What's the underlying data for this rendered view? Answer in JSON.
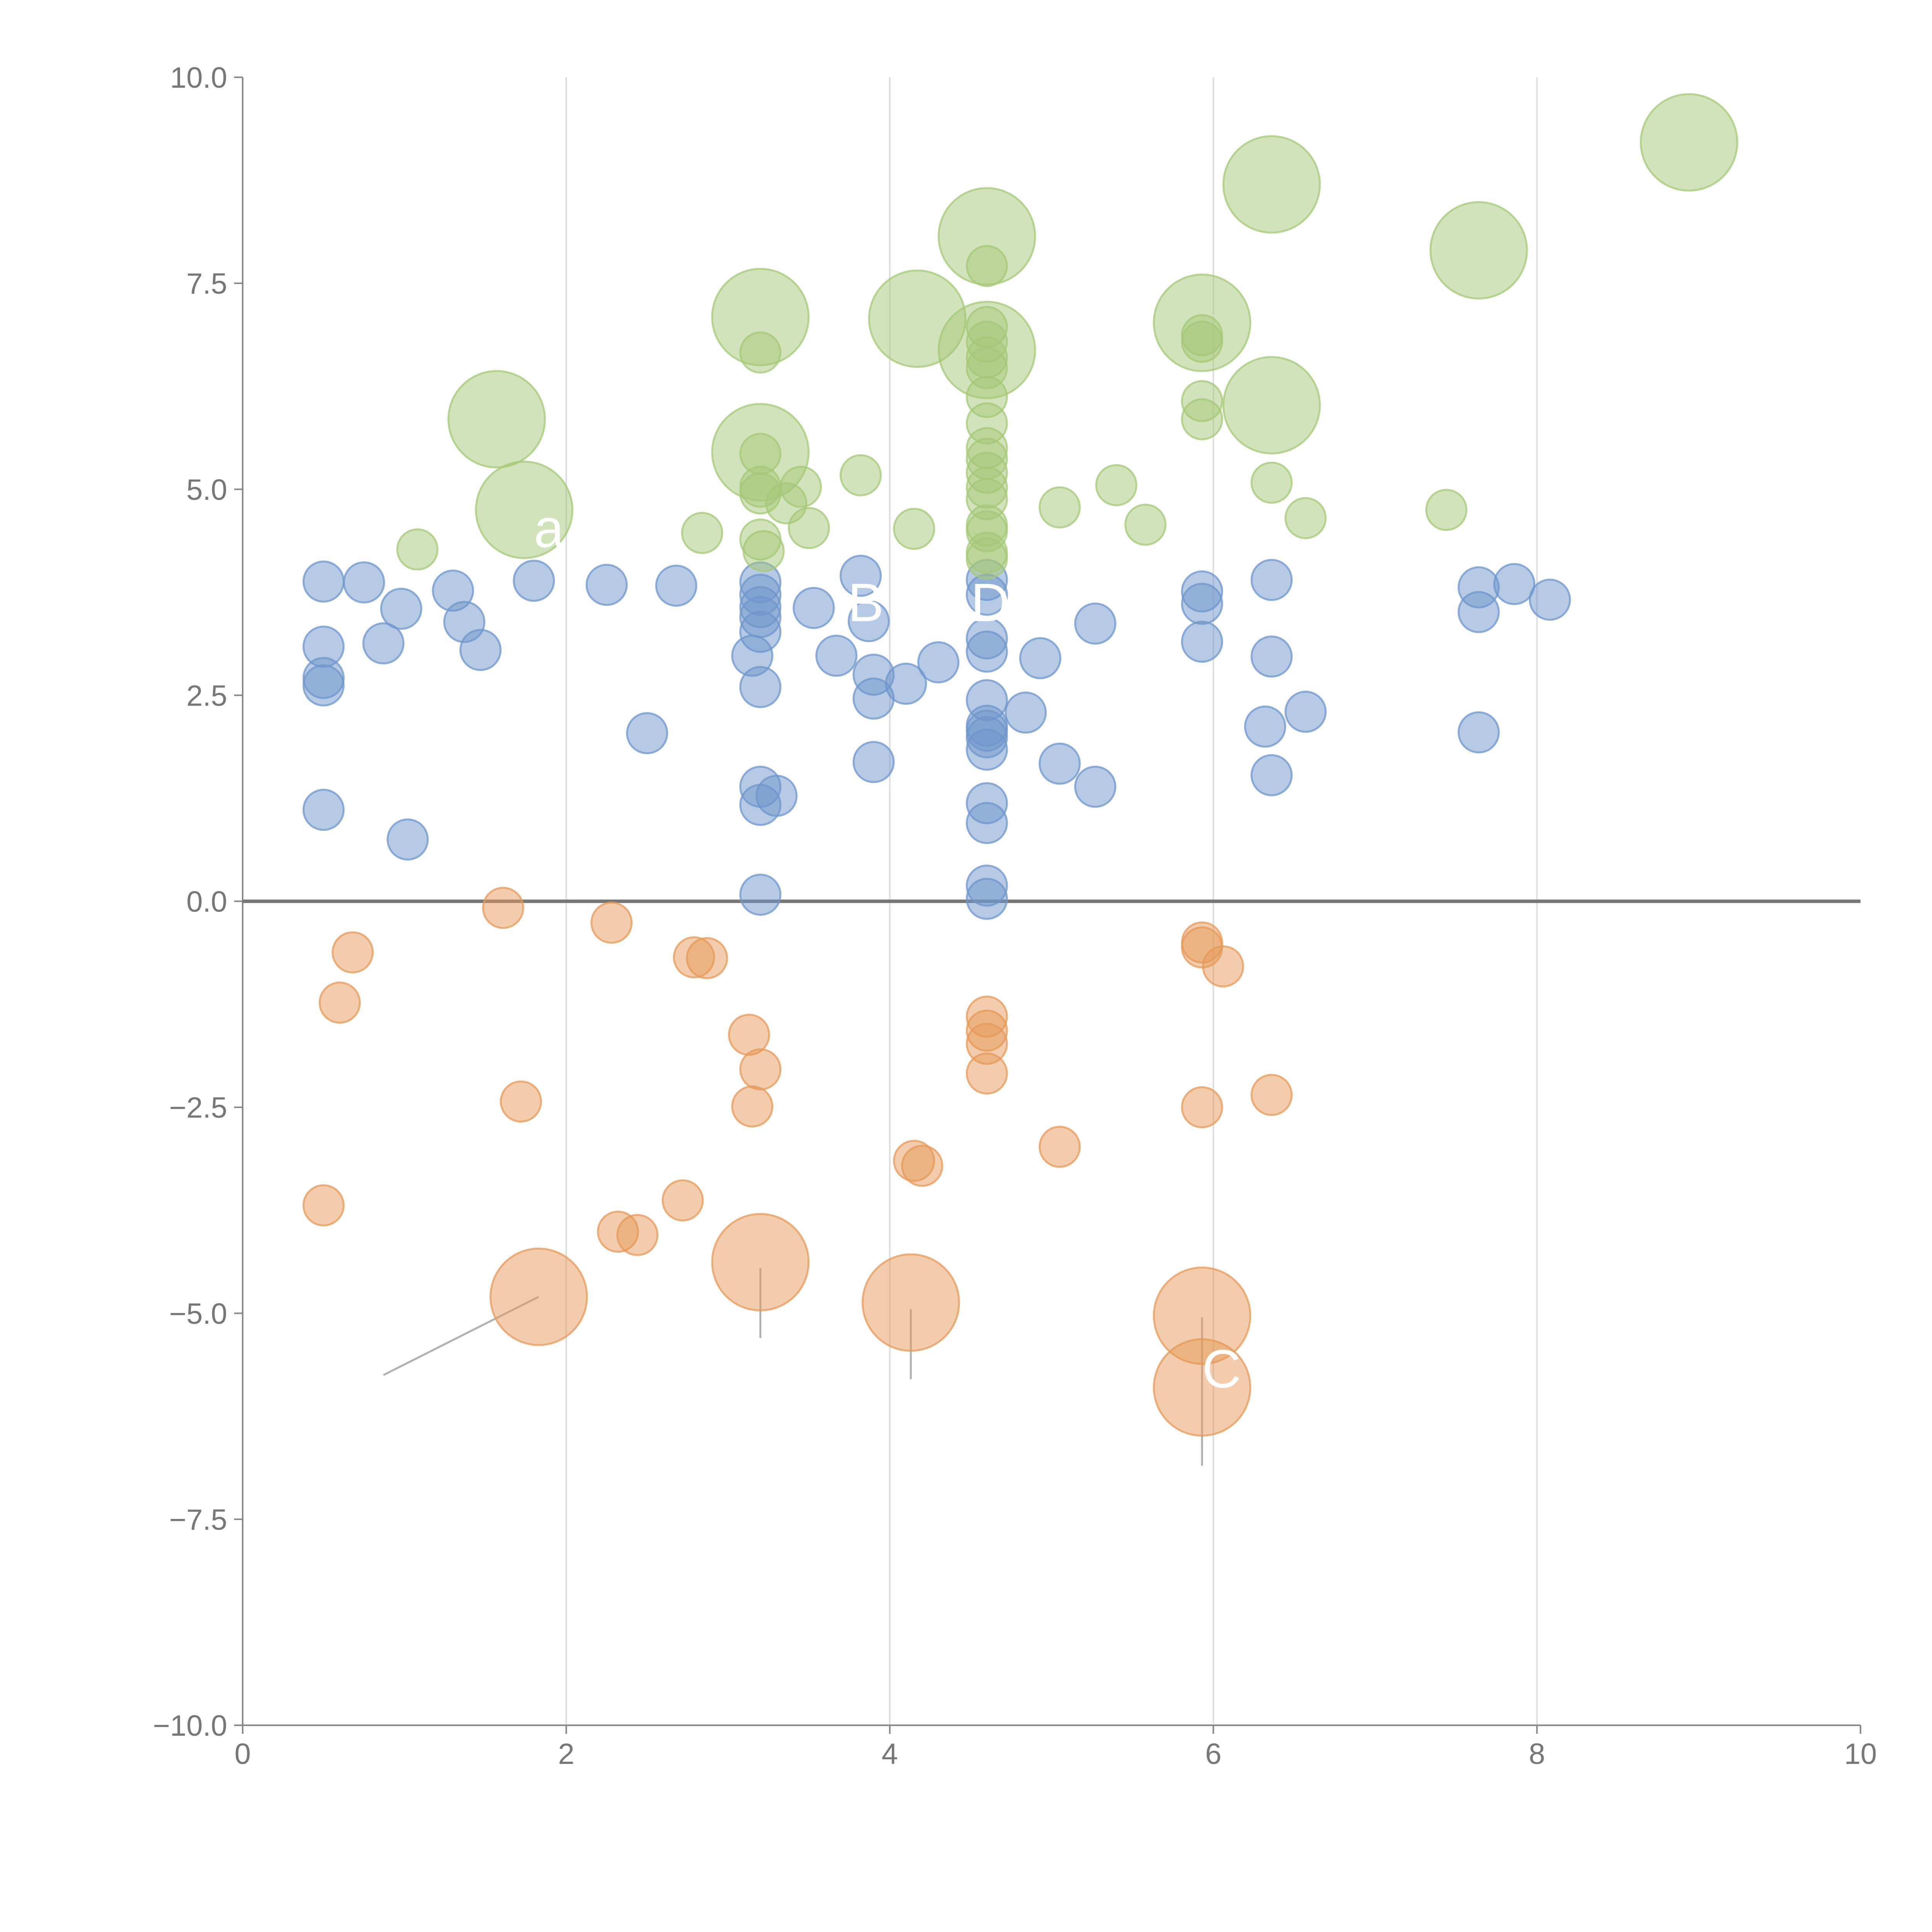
{
  "chart_data": {
    "type": "scatter",
    "title": "",
    "xlabel": "",
    "ylabel": "",
    "xlim": [
      0,
      10
    ],
    "ylim": [
      -10,
      10
    ],
    "x_ticks": [
      "0",
      "2",
      "4",
      "6",
      "8",
      "10"
    ],
    "y_ticks": [
      "10.0",
      "7.5",
      "5.0",
      "2.5",
      "0.0",
      "−2.5",
      "−5.0",
      "−7.5",
      "−10.0"
    ],
    "x_grid": [
      2,
      4,
      6,
      8
    ],
    "zero_line": 0,
    "colors": {
      "blue": "#6f95cb",
      "orange": "#e6995a",
      "green": "#a6c878"
    },
    "series": [
      {
        "name": "blue",
        "color": "#6f95cb",
        "points": [
          [
            0.5,
            3.88,
            1
          ],
          [
            0.75,
            3.87,
            1
          ],
          [
            0.98,
            3.55,
            1
          ],
          [
            1.3,
            3.77,
            1
          ],
          [
            1.37,
            3.39,
            1
          ],
          [
            1.47,
            3.05,
            1
          ],
          [
            0.5,
            3.09,
            1
          ],
          [
            0.87,
            3.13,
            1
          ],
          [
            0.5,
            2.71,
            1
          ],
          [
            0.5,
            2.62,
            1
          ],
          [
            0.5,
            1.11,
            1
          ],
          [
            1.02,
            0.75,
            1
          ],
          [
            1.8,
            3.89,
            1
          ],
          [
            2.25,
            3.84,
            1
          ],
          [
            2.68,
            3.83,
            1
          ],
          [
            2.5,
            2.04,
            1
          ],
          [
            3.2,
            3.87,
            1
          ],
          [
            3.2,
            3.72,
            1
          ],
          [
            3.2,
            3.57,
            1
          ],
          [
            3.2,
            3.45,
            1
          ],
          [
            3.2,
            3.27,
            1
          ],
          [
            3.15,
            2.98,
            1
          ],
          [
            3.2,
            2.6,
            1
          ],
          [
            3.2,
            1.39,
            1
          ],
          [
            3.2,
            1.17,
            1
          ],
          [
            3.3,
            1.28,
            1
          ],
          [
            3.2,
            0.08,
            1
          ],
          [
            3.53,
            3.56,
            1
          ],
          [
            3.67,
            2.98,
            1
          ],
          [
            3.82,
            3.95,
            1
          ],
          [
            3.87,
            3.4,
            1
          ],
          [
            3.9,
            2.75,
            1
          ],
          [
            3.9,
            2.46,
            1
          ],
          [
            3.9,
            1.69,
            1
          ],
          [
            4.1,
            2.64,
            1
          ],
          [
            4.3,
            2.9,
            1
          ],
          [
            4.6,
            3.9,
            1
          ],
          [
            4.6,
            3.72,
            1
          ],
          [
            4.6,
            3.19,
            1
          ],
          [
            4.6,
            3.03,
            1
          ],
          [
            4.6,
            2.44,
            1
          ],
          [
            4.6,
            2.13,
            1
          ],
          [
            4.6,
            2.07,
            1
          ],
          [
            4.6,
            1.99,
            1
          ],
          [
            4.6,
            1.84,
            1
          ],
          [
            4.6,
            1.19,
            1
          ],
          [
            4.6,
            0.95,
            1
          ],
          [
            4.6,
            0.19,
            1
          ],
          [
            4.6,
            0.03,
            1
          ],
          [
            4.84,
            2.29,
            1
          ],
          [
            4.93,
            2.95,
            1
          ],
          [
            5.05,
            1.67,
            1
          ],
          [
            5.27,
            3.37,
            1
          ],
          [
            5.27,
            1.39,
            1
          ],
          [
            5.93,
            3.76,
            1
          ],
          [
            5.93,
            3.61,
            1
          ],
          [
            5.93,
            3.15,
            1
          ],
          [
            6.36,
            3.9,
            1
          ],
          [
            6.36,
            2.97,
            1
          ],
          [
            6.32,
            2.12,
            1
          ],
          [
            6.57,
            2.3,
            1
          ],
          [
            6.36,
            1.53,
            1
          ],
          [
            7.64,
            3.81,
            1
          ],
          [
            7.86,
            3.85,
            1
          ],
          [
            7.64,
            3.51,
            1
          ],
          [
            8.08,
            3.66,
            1
          ],
          [
            7.64,
            2.05,
            1
          ]
        ]
      },
      {
        "name": "orange",
        "color": "#e6995a",
        "points": [
          [
            0.68,
            -0.62,
            1
          ],
          [
            0.6,
            -1.23,
            1
          ],
          [
            0.5,
            -3.69,
            1
          ],
          [
            1.61,
            -0.08,
            1
          ],
          [
            1.72,
            -2.43,
            1
          ],
          [
            2.28,
            -0.26,
            1
          ],
          [
            2.79,
            -0.68,
            1
          ],
          [
            2.87,
            -0.69,
            1
          ],
          [
            2.72,
            -3.63,
            1
          ],
          [
            2.32,
            -4.01,
            1
          ],
          [
            2.44,
            -4.05,
            1
          ],
          [
            3.13,
            -1.62,
            1
          ],
          [
            3.2,
            -2.04,
            1
          ],
          [
            3.15,
            -2.49,
            1
          ],
          [
            4.15,
            -3.15,
            1
          ],
          [
            4.2,
            -3.21,
            1
          ],
          [
            4.6,
            -1.4,
            1
          ],
          [
            4.6,
            -1.57,
            1
          ],
          [
            4.6,
            -1.73,
            1
          ],
          [
            4.6,
            -2.09,
            1
          ],
          [
            5.05,
            -2.98,
            1
          ],
          [
            5.93,
            -0.5,
            1
          ],
          [
            5.93,
            -0.56,
            1
          ],
          [
            6.06,
            -0.79,
            1
          ],
          [
            5.93,
            -2.5,
            1
          ],
          [
            6.36,
            -2.35,
            1
          ],
          [
            1.83,
            -4.8,
            2.4
          ],
          [
            3.2,
            -4.38,
            2.4
          ],
          [
            4.13,
            -4.87,
            2.4
          ],
          [
            5.93,
            -5.03,
            2.4
          ],
          [
            5.93,
            -5.9,
            2.4
          ]
        ]
      },
      {
        "name": "green",
        "color": "#a6c878",
        "points": [
          [
            1.08,
            4.27,
            1
          ],
          [
            2.84,
            4.47,
            1
          ],
          [
            3.2,
            6.66,
            1
          ],
          [
            3.2,
            5.43,
            1
          ],
          [
            3.2,
            5.03,
            1
          ],
          [
            3.2,
            4.95,
            1
          ],
          [
            3.2,
            4.39,
            1
          ],
          [
            3.22,
            4.25,
            1
          ],
          [
            3.36,
            4.83,
            1
          ],
          [
            3.45,
            5.03,
            1
          ],
          [
            3.5,
            4.53,
            1
          ],
          [
            3.82,
            5.17,
            1
          ],
          [
            4.15,
            4.52,
            1
          ],
          [
            4.6,
            7.71,
            1
          ],
          [
            4.6,
            6.97,
            1
          ],
          [
            4.6,
            6.79,
            1
          ],
          [
            4.6,
            6.6,
            1
          ],
          [
            4.6,
            6.47,
            1
          ],
          [
            4.6,
            6.12,
            1
          ],
          [
            4.6,
            5.8,
            1
          ],
          [
            4.6,
            5.5,
            1
          ],
          [
            4.6,
            5.37,
            1
          ],
          [
            4.6,
            5.2,
            1
          ],
          [
            4.6,
            5.02,
            1
          ],
          [
            4.6,
            4.88,
            1
          ],
          [
            4.6,
            4.56,
            1
          ],
          [
            4.6,
            4.49,
            1
          ],
          [
            4.6,
            4.23,
            1
          ],
          [
            4.6,
            4.16,
            1
          ],
          [
            5.05,
            4.78,
            1
          ],
          [
            5.4,
            5.05,
            1
          ],
          [
            5.58,
            4.57,
            1
          ],
          [
            5.93,
            6.87,
            1
          ],
          [
            5.93,
            6.79,
            1
          ],
          [
            5.93,
            6.07,
            1
          ],
          [
            5.93,
            5.85,
            1
          ],
          [
            6.36,
            5.08,
            1
          ],
          [
            6.57,
            4.65,
            1
          ],
          [
            7.44,
            4.75,
            1
          ],
          [
            1.57,
            5.85,
            2.4
          ],
          [
            1.74,
            4.75,
            2.4
          ],
          [
            3.2,
            7.09,
            2.4
          ],
          [
            3.2,
            5.45,
            2.4
          ],
          [
            4.17,
            7.07,
            2.4
          ],
          [
            4.6,
            8.07,
            2.4
          ],
          [
            4.6,
            6.69,
            2.4
          ],
          [
            5.93,
            7.02,
            2.4
          ],
          [
            6.36,
            8.7,
            2.4
          ],
          [
            6.36,
            6.02,
            2.4
          ],
          [
            7.64,
            7.9,
            2.4
          ],
          [
            8.94,
            9.21,
            2.4
          ]
        ]
      }
    ],
    "leader_lines": [
      {
        "series": "orange",
        "from": [
          1.83,
          -4.8
        ],
        "to": [
          0.87,
          -5.75
        ]
      },
      {
        "series": "orange",
        "from": [
          3.2,
          -4.45
        ],
        "to": [
          3.2,
          -5.3
        ]
      },
      {
        "series": "orange",
        "from": [
          4.13,
          -4.95
        ],
        "to": [
          4.13,
          -5.8
        ]
      },
      {
        "series": "orange",
        "from": [
          5.93,
          -5.05
        ],
        "to": [
          5.93,
          -6.85
        ]
      },
      {
        "series": "green",
        "from": [
          1.6,
          5.9
        ],
        "to": [
          1.78,
          6.08
        ]
      },
      {
        "series": "green",
        "from": [
          1.76,
          4.7
        ],
        "to": [
          1.9,
          4.6
        ]
      },
      {
        "series": "green",
        "from": [
          3.2,
          7.15
        ],
        "to": [
          3.33,
          7.32
        ]
      },
      {
        "series": "green",
        "from": [
          3.25,
          5.35
        ],
        "to": [
          3.35,
          5.25
        ]
      },
      {
        "series": "green",
        "from": [
          4.6,
          8.12
        ],
        "to": [
          4.69,
          8.27
        ]
      },
      {
        "series": "green",
        "from": [
          5.96,
          7.07
        ],
        "to": [
          6.12,
          7.22
        ]
      },
      {
        "series": "green",
        "from": [
          7.64,
          7.88
        ],
        "to": [
          7.83,
          7.87
        ]
      },
      {
        "series": "green",
        "from": [
          8.97,
          9.23
        ],
        "to": [
          9.15,
          9.31
        ]
      }
    ],
    "annotations": [
      {
        "text": "a",
        "x": 1.8,
        "y": 4.3
      },
      {
        "text": "B",
        "x": 3.74,
        "y": 3.4
      },
      {
        "text": "D",
        "x": 4.5,
        "y": 3.4
      },
      {
        "text": "C",
        "x": 5.93,
        "y": -5.9
      }
    ]
  }
}
